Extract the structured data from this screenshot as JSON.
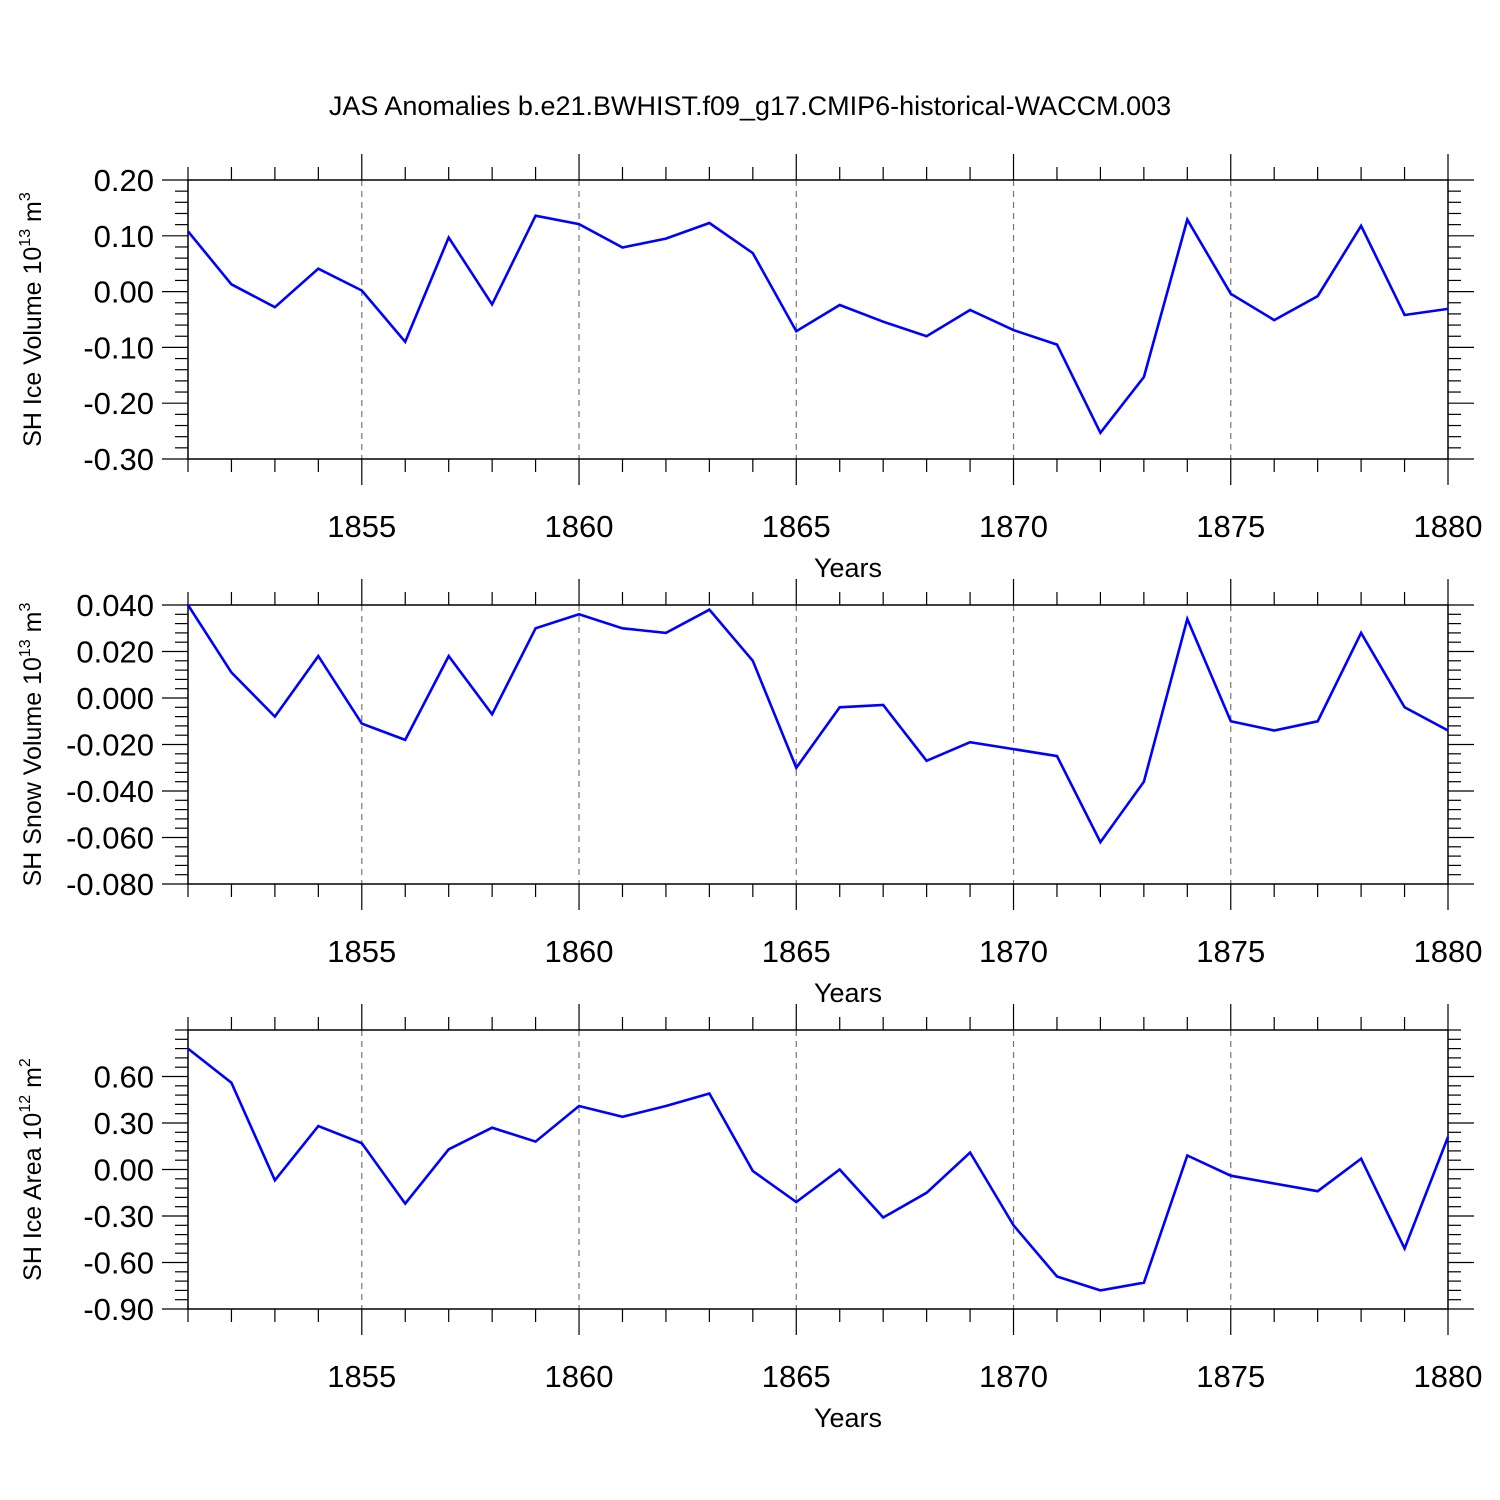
{
  "title": "JAS Anomalies b.e21.BWHIST.f09_g17.CMIP6-historical-WACCM.003",
  "line_color": "#0000ff",
  "chart_data": [
    {
      "type": "line",
      "name": "ice-volume",
      "ylabel_main": "SH Ice Volume 10",
      "ylabel_exp": "13",
      "ylabel_unit": " m",
      "ylabel_unit_exp": "3",
      "xlabel": "Years",
      "xlim": [
        1851,
        1880
      ],
      "ylim": [
        -0.3,
        0.2
      ],
      "xticks": [
        1855,
        1860,
        1865,
        1870,
        1875,
        1880
      ],
      "xtick_labels": [
        "1855",
        "1860",
        "1865",
        "1870",
        "1875",
        "1880"
      ],
      "yticks": [
        0.2,
        0.1,
        0.0,
        -0.1,
        -0.2,
        -0.3
      ],
      "ytick_labels": [
        "0.20",
        "0.10",
        "0.00",
        "-0.10",
        "-0.20",
        "-0.30"
      ],
      "x": [
        1851,
        1852,
        1853,
        1854,
        1855,
        1856,
        1857,
        1858,
        1859,
        1860,
        1861,
        1862,
        1863,
        1864,
        1865,
        1866,
        1867,
        1868,
        1869,
        1870,
        1871,
        1872,
        1873,
        1874,
        1875,
        1876,
        1877,
        1878,
        1879,
        1880
      ],
      "values": [
        0.108,
        0.013,
        -0.028,
        0.041,
        0.002,
        -0.09,
        0.097,
        -0.023,
        0.136,
        0.121,
        0.079,
        0.095,
        0.123,
        0.069,
        -0.071,
        -0.024,
        -0.054,
        -0.08,
        -0.033,
        -0.069,
        -0.095,
        -0.253,
        -0.153,
        0.129,
        -0.004,
        -0.051,
        -0.008,
        0.118,
        -0.042,
        -0.031
      ]
    },
    {
      "type": "line",
      "name": "snow-volume",
      "ylabel_main": "SH Snow Volume 10",
      "ylabel_exp": "13",
      "ylabel_unit": " m",
      "ylabel_unit_exp": "3",
      "xlabel": "Years",
      "xlim": [
        1851,
        1880
      ],
      "ylim": [
        -0.08,
        0.04
      ],
      "xticks": [
        1855,
        1860,
        1865,
        1870,
        1875,
        1880
      ],
      "xtick_labels": [
        "1855",
        "1860",
        "1865",
        "1870",
        "1875",
        "1880"
      ],
      "yticks": [
        0.04,
        0.02,
        0.0,
        -0.02,
        -0.04,
        -0.06,
        -0.08
      ],
      "ytick_labels": [
        "0.040",
        "0.020",
        "0.000",
        "-0.020",
        "-0.040",
        "-0.060",
        "-0.080"
      ],
      "x": [
        1851,
        1852,
        1853,
        1854,
        1855,
        1856,
        1857,
        1858,
        1859,
        1860,
        1861,
        1862,
        1863,
        1864,
        1865,
        1866,
        1867,
        1868,
        1869,
        1870,
        1871,
        1872,
        1873,
        1874,
        1875,
        1876,
        1877,
        1878,
        1879,
        1880
      ],
      "values": [
        0.04,
        0.011,
        -0.008,
        0.018,
        -0.011,
        -0.018,
        0.018,
        -0.007,
        0.03,
        0.036,
        0.03,
        0.028,
        0.038,
        0.016,
        -0.03,
        -0.004,
        -0.003,
        -0.027,
        -0.019,
        -0.022,
        -0.025,
        -0.062,
        -0.036,
        0.034,
        -0.01,
        -0.014,
        -0.01,
        0.028,
        -0.004,
        -0.014
      ]
    },
    {
      "type": "line",
      "name": "ice-area",
      "ylabel_main": "SH Ice Area 10",
      "ylabel_exp": "12",
      "ylabel_unit": " m",
      "ylabel_unit_exp": "2",
      "xlabel": "Years",
      "xlim": [
        1851,
        1880
      ],
      "ylim": [
        -0.9,
        0.9
      ],
      "xticks": [
        1855,
        1860,
        1865,
        1870,
        1875,
        1880
      ],
      "xtick_labels": [
        "1855",
        "1860",
        "1865",
        "1870",
        "1875",
        "1880"
      ],
      "yticks": [
        0.6,
        0.3,
        0.0,
        -0.3,
        -0.6,
        -0.9
      ],
      "ytick_labels": [
        "0.60",
        "0.30",
        "0.00",
        "-0.30",
        "-0.60",
        "-0.90"
      ],
      "x": [
        1851,
        1852,
        1853,
        1854,
        1855,
        1856,
        1857,
        1858,
        1859,
        1860,
        1861,
        1862,
        1863,
        1864,
        1865,
        1866,
        1867,
        1868,
        1869,
        1870,
        1871,
        1872,
        1873,
        1874,
        1875,
        1876,
        1877,
        1878,
        1879,
        1880
      ],
      "values": [
        0.78,
        0.56,
        -0.07,
        0.28,
        0.17,
        -0.22,
        0.13,
        0.27,
        0.18,
        0.41,
        0.34,
        0.41,
        0.49,
        -0.01,
        -0.21,
        0.0,
        -0.31,
        -0.15,
        0.11,
        -0.36,
        -0.69,
        -0.78,
        -0.73,
        0.09,
        -0.04,
        -0.09,
        -0.14,
        0.07,
        -0.51,
        0.21
      ]
    }
  ]
}
